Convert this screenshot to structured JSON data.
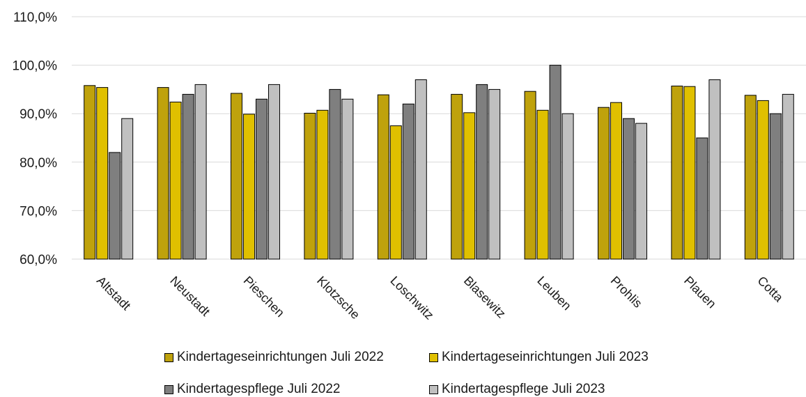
{
  "chart_data": {
    "type": "bar",
    "title": "",
    "xlabel": "",
    "ylabel": "",
    "ylim": [
      60,
      110
    ],
    "yticks": [
      60,
      70,
      80,
      90,
      100,
      110
    ],
    "ytick_labels": [
      "60,0%",
      "70,0%",
      "80,0%",
      "90,0%",
      "100,0%",
      "110,0%"
    ],
    "grid": true,
    "legend_position": "bottom",
    "categories": [
      "Altstadt",
      "Neustadt",
      "Pieschen",
      "Klotzsche",
      "Loschwitz",
      "Blasewitz",
      "Leuben",
      "Prohlis",
      "Plauen",
      "Cotta"
    ],
    "series": [
      {
        "name": "Kindertageseinrichtungen Juli 2022",
        "color": "#bfa20c",
        "values": [
          95.8,
          95.4,
          94.2,
          90.1,
          93.9,
          94.0,
          94.6,
          91.3,
          95.7,
          93.8
        ]
      },
      {
        "name": "Kindertageseinrichtungen Juli 2023",
        "color": "#e0c000",
        "values": [
          95.4,
          92.4,
          89.9,
          90.7,
          87.5,
          90.2,
          90.7,
          92.3,
          95.6,
          92.7
        ]
      },
      {
        "name": "Kindertagespflege Juli 2022",
        "color": "#7f7f7f",
        "values": [
          82,
          94,
          93,
          95,
          92,
          96,
          100,
          89,
          85,
          90
        ]
      },
      {
        "name": "Kindertagespflege Juli 2023",
        "color": "#c0c0c0",
        "values": [
          89,
          96,
          96,
          93,
          97,
          95,
          90,
          88,
          97,
          94
        ]
      }
    ]
  }
}
